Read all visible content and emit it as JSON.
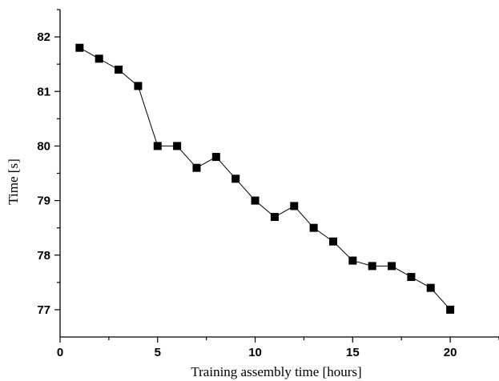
{
  "chart_data": {
    "type": "line",
    "xlabel": "Training assembly time [hours]",
    "ylabel": "Time [s]",
    "xlim": [
      0,
      22.5
    ],
    "ylim": [
      76.5,
      82.5
    ],
    "x_ticks": [
      0,
      5,
      10,
      15,
      20
    ],
    "y_ticks": [
      77,
      78,
      79,
      80,
      81,
      82
    ],
    "x_tick_labels": [
      "0",
      "5",
      "10",
      "15",
      "20"
    ],
    "y_tick_labels": [
      "77",
      "78",
      "79",
      "80",
      "81",
      "82"
    ],
    "grid": false,
    "marker": "square",
    "series": [
      {
        "x": [
          1,
          2,
          3,
          4,
          5,
          6,
          7,
          8,
          9,
          10,
          11,
          12,
          13,
          14,
          15,
          16,
          17,
          18,
          19,
          20
        ],
        "values": [
          81.8,
          81.6,
          81.4,
          81.1,
          80.0,
          80.0,
          79.6,
          79.8,
          79.4,
          79.0,
          78.7,
          78.9,
          78.5,
          78.25,
          77.9,
          77.8,
          77.8,
          77.6,
          77.4,
          77.0
        ]
      }
    ]
  }
}
